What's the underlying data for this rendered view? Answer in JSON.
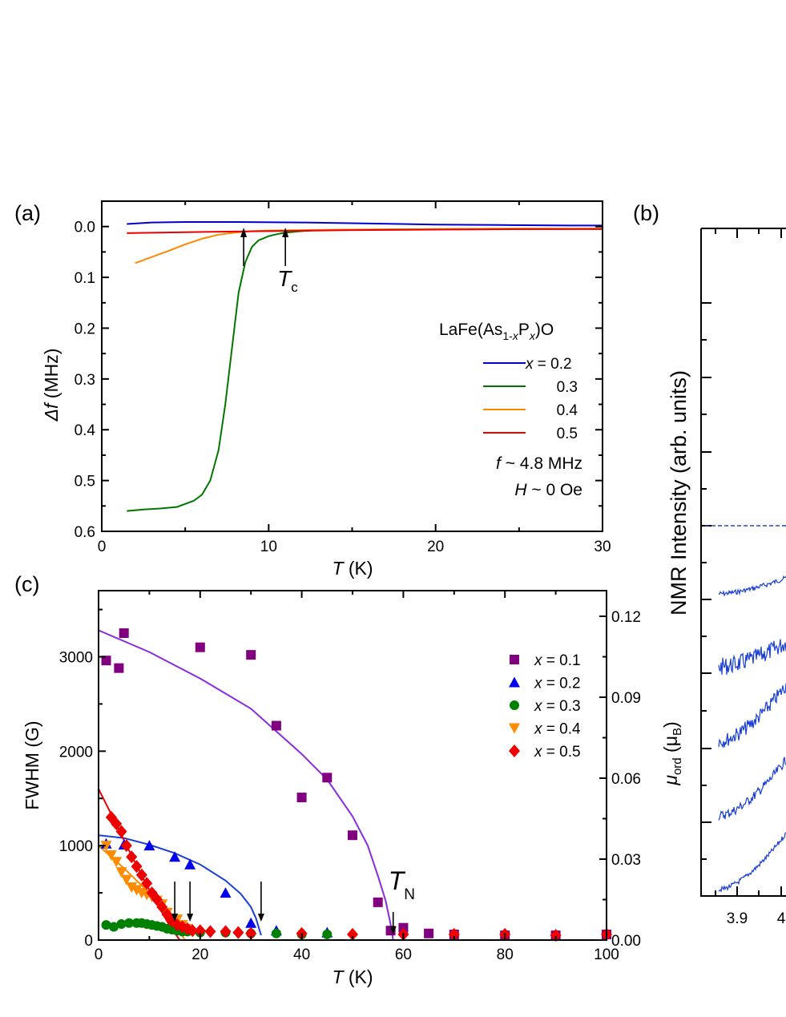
{
  "panels": {
    "a": "(a)",
    "b": "(b)",
    "c": "(c)"
  },
  "chart_data": [
    {
      "panel": "(a)",
      "type": "line",
      "xlabel_italic": "T",
      "xlabel_unit": " (K)",
      "ylabel_italic": "Δf",
      "ylabel_unit": " (MHz)",
      "xlim": [
        0,
        30
      ],
      "ylim": [
        0.6,
        -0.05
      ],
      "y_inverted": true,
      "xticks": [
        0,
        10,
        20,
        30
      ],
      "yticks": [
        "0.0",
        "0.1",
        "0.2",
        "0.3",
        "0.4",
        "0.5",
        "0.6"
      ],
      "legend_title_parts": [
        "LaFe(As",
        "1-",
        "x",
        "P",
        "x",
        ")O"
      ],
      "legend_first_var": "x",
      "series": [
        {
          "name": " = 0.2",
          "color": "#0000cc",
          "x": [
            1.5,
            3,
            5,
            8,
            12,
            16,
            20,
            24,
            28,
            30
          ],
          "y": [
            -0.005,
            -0.008,
            -0.009,
            -0.009,
            -0.008,
            -0.006,
            -0.004,
            -0.003,
            -0.002,
            -0.002
          ]
        },
        {
          "name": "0.3",
          "color": "#007700",
          "x": [
            1.5,
            2.5,
            3.5,
            4.5,
            5.5,
            6.0,
            6.5,
            7.0,
            7.4,
            7.8,
            8.2,
            8.6,
            9.0,
            9.4,
            10.0,
            10.5,
            11.0,
            12.0,
            13.0,
            15.0,
            20.0,
            25.0,
            30.0
          ],
          "y": [
            0.56,
            0.557,
            0.555,
            0.552,
            0.54,
            0.528,
            0.5,
            0.44,
            0.35,
            0.24,
            0.13,
            0.07,
            0.04,
            0.027,
            0.019,
            0.015,
            0.012,
            0.009,
            0.007,
            0.006,
            0.005,
            0.005,
            0.004
          ]
        },
        {
          "name": "0.4",
          "color": "#ff8800",
          "x": [
            2,
            3,
            4,
            5,
            6,
            7,
            8,
            9,
            10,
            12,
            15,
            20,
            25,
            30
          ],
          "y": [
            0.072,
            0.06,
            0.048,
            0.035,
            0.024,
            0.016,
            0.012,
            0.009,
            0.008,
            0.007,
            0.006,
            0.005,
            0.004,
            0.004
          ]
        },
        {
          "name": "0.5",
          "color": "#ee0000",
          "x": [
            1.5,
            5,
            10,
            15,
            20,
            25,
            30
          ],
          "y": [
            0.013,
            0.011,
            0.009,
            0.007,
            0.006,
            0.005,
            0.005
          ]
        }
      ],
      "annotations": [
        {
          "label_italic": "T",
          "label_sub": "c",
          "x": 11.0
        },
        {
          "arrow_only": true,
          "x": 8.5
        }
      ],
      "notes": [
        {
          "italic": "f",
          "text": " ~ 4.8 MHz"
        },
        {
          "italic": "H",
          "text": " ~ 0 Oe"
        }
      ]
    },
    {
      "panel": "(b)",
      "type": "line",
      "ylabel": "NMR Intensity (arb. units)",
      "xticks_visible": [
        "3.9",
        "4"
      ]
    },
    {
      "panel": "(c)",
      "type": "scatter",
      "xlabel_italic": "T",
      "xlabel_unit": " (K)",
      "ylabel": "FWHM (G)",
      "y2label_italic": "μ",
      "y2label_sub": "ord",
      "y2label_unit_pre": " (μ",
      "y2label_unit_sub": "B",
      "y2label_unit_post": ")",
      "xlim": [
        0,
        100
      ],
      "ylim": [
        0,
        3700
      ],
      "y2lim": [
        0,
        0.1295
      ],
      "xticks": [
        0,
        20,
        40,
        60,
        80,
        100
      ],
      "yticks": [
        0,
        1000,
        2000,
        3000
      ],
      "y2ticks": [
        "0.00",
        "0.03",
        "0.06",
        "0.09",
        "0.12"
      ],
      "y2tick_values": [
        0,
        0.03,
        0.06,
        0.09,
        0.12
      ],
      "series": [
        {
          "name": " = 0.1",
          "color": "#800080",
          "marker": "square",
          "x": [
            1.5,
            4,
            5,
            20,
            30,
            35,
            40,
            45,
            50,
            55,
            57.5,
            60,
            65,
            70,
            80,
            90,
            100
          ],
          "y": [
            2960,
            2880,
            3250,
            3100,
            3020,
            2270,
            1510,
            1720,
            1110,
            400,
            100,
            130,
            70,
            60,
            50,
            50,
            60
          ],
          "fit": {
            "color": "#8a2be2",
            "x": [
              0,
              10,
              20,
              30,
              40,
              45,
              50,
              53,
              55,
              56.5,
              57.5,
              58
            ],
            "y": [
              3280,
              3050,
              2770,
              2450,
              1970,
              1700,
              1310,
              1000,
              680,
              420,
              170,
              0
            ]
          }
        },
        {
          "name": " = 0.2",
          "color": "#0000ee",
          "marker": "triangle-up",
          "x": [
            1.5,
            5,
            10,
            15,
            18,
            25,
            30,
            35,
            45
          ],
          "y": [
            1020,
            1010,
            1000,
            880,
            800,
            500,
            180,
            100,
            80
          ],
          "fit": {
            "color": "#1a3fd6",
            "x": [
              0,
              5,
              10,
              15,
              20,
              25,
              28,
              30,
              31,
              32
            ],
            "y": [
              1110,
              1080,
              1010,
              920,
              800,
              630,
              490,
              350,
              230,
              50
            ]
          }
        },
        {
          "name": " = 0.3",
          "color": "#008000",
          "marker": "circle",
          "x": [
            1.5,
            3,
            4.5,
            6,
            7.5,
            8.5,
            9.5,
            10.5,
            11.5,
            12.5,
            13.5,
            14.5,
            15.5,
            16.5,
            17.5,
            20,
            25,
            30,
            35,
            40,
            45
          ],
          "y": [
            160,
            140,
            170,
            180,
            180,
            180,
            170,
            160,
            150,
            140,
            120,
            110,
            100,
            90,
            90,
            80,
            80,
            70,
            70,
            60,
            60
          ]
        },
        {
          "name": " = 0.4",
          "color": "#ff8c00",
          "marker": "triangle-down",
          "x": [
            1.5,
            2.5,
            3.5,
            4.5,
            5.5,
            6.5,
            7.5,
            8.5,
            9.5,
            10.5,
            11.5,
            12.5,
            13.5,
            14.5,
            15.5,
            16.5,
            17.5
          ],
          "y": [
            1000,
            900,
            830,
            720,
            640,
            560,
            530,
            500,
            480,
            460,
            420,
            380,
            290,
            230,
            220,
            160,
            120
          ],
          "fit": {
            "color": "#ff8c00",
            "x": [
              0,
              5,
              10,
              14,
              17
            ],
            "y": [
              1000,
              760,
              500,
              260,
              0
            ]
          }
        },
        {
          "name": " = 0.5",
          "color": "#ee0000",
          "marker": "diamond",
          "x": [
            2.5,
            3.5,
            4.5,
            5.5,
            6.5,
            7.5,
            8.5,
            9.5,
            10.5,
            11.5,
            12.5,
            13.5,
            14.5,
            15.5,
            16.5,
            17.5,
            18.5,
            20,
            22,
            25,
            27.5,
            30,
            40,
            50,
            60,
            70,
            80,
            90,
            100
          ],
          "y": [
            1300,
            1230,
            1150,
            1000,
            880,
            780,
            690,
            600,
            500,
            430,
            350,
            270,
            200,
            160,
            140,
            120,
            100,
            100,
            90,
            90,
            80,
            70,
            70,
            60,
            60,
            60,
            60,
            50,
            60
          ],
          "fit": {
            "color": "#ee0000",
            "x": [
              0,
              3,
              6,
              9,
              12,
              14,
              16
            ],
            "y": [
              1600,
              1280,
              950,
              630,
              340,
              150,
              0
            ]
          }
        }
      ],
      "arrows_x": [
        15,
        18,
        32,
        58
      ],
      "annotation": {
        "label_italic": "T",
        "label_sub": "N",
        "x": 58
      }
    }
  ]
}
